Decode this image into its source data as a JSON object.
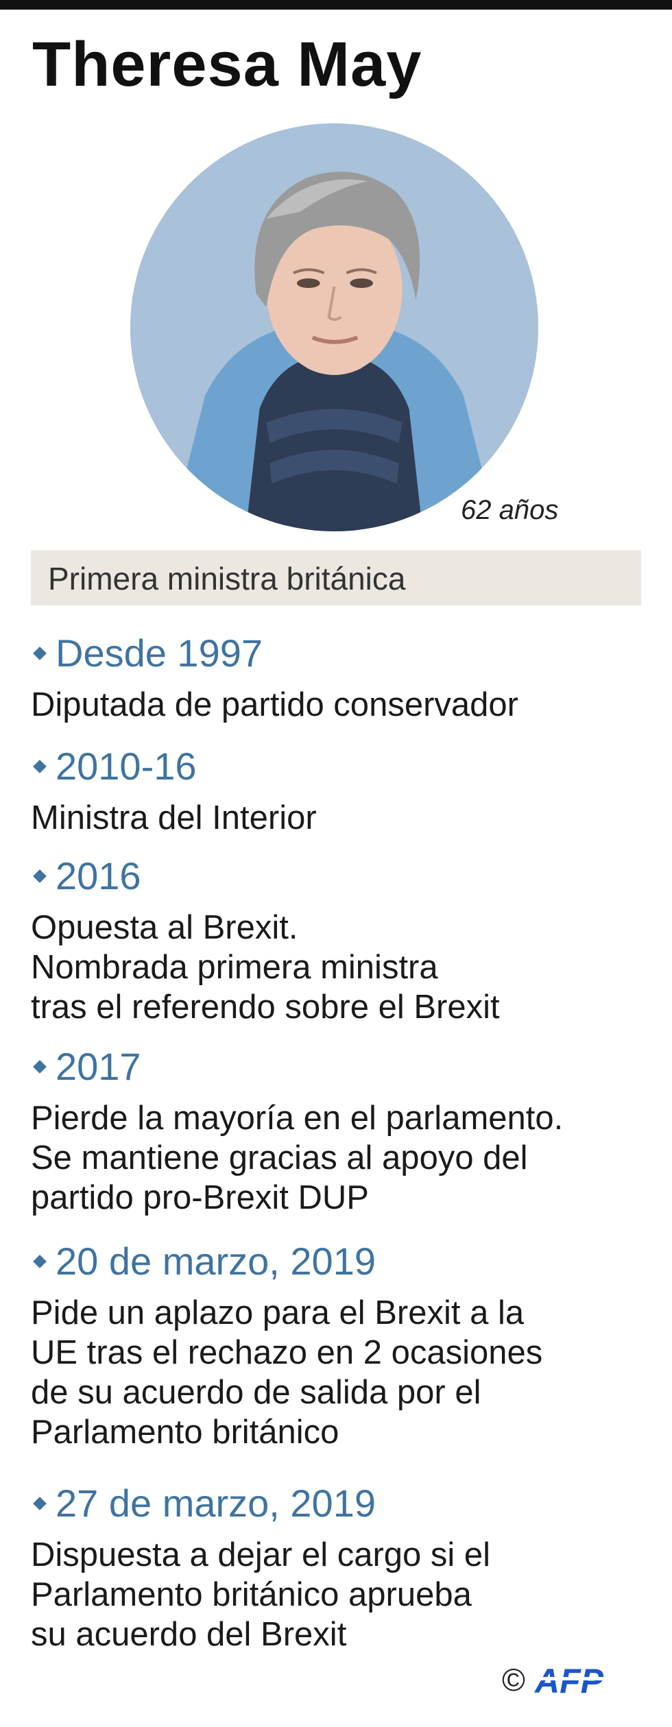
{
  "title": "Theresa May",
  "age": "62 años",
  "role": "Primera ministra británica",
  "colors": {
    "accent": "#3f73a0",
    "band": "#ece7e0",
    "portrait_bg": "#a9c1d9"
  },
  "entries": [
    {
      "date": "Desde 1997",
      "lines": [
        "Diputada de partido conservador"
      ]
    },
    {
      "date": "2010-16",
      "lines": [
        "Ministra del Interior"
      ]
    },
    {
      "date": "2016",
      "lines": [
        "Opuesta al Brexit.",
        "Nombrada primera ministra",
        "tras el referendo sobre el Brexit"
      ]
    },
    {
      "date": "2017",
      "lines": [
        "Pierde la mayoría en el parlamento.",
        "Se mantiene gracias al apoyo del",
        "partido pro-Brexit DUP"
      ]
    },
    {
      "date": "20 de marzo, 2019",
      "lines": [
        "Pide un aplazo para el Brexit a la",
        "UE tras el rechazo en 2 ocasiones",
        "de su acuerdo de salida por el",
        "Parlamento británico"
      ]
    },
    {
      "date": "27 de marzo, 2019",
      "lines": [
        "Dispuesta a dejar el cargo si el",
        "Parlamento británico aprueba",
        "su acuerdo del Brexit"
      ]
    }
  ],
  "credit": {
    "copyright": "©",
    "agency": "AFP"
  }
}
